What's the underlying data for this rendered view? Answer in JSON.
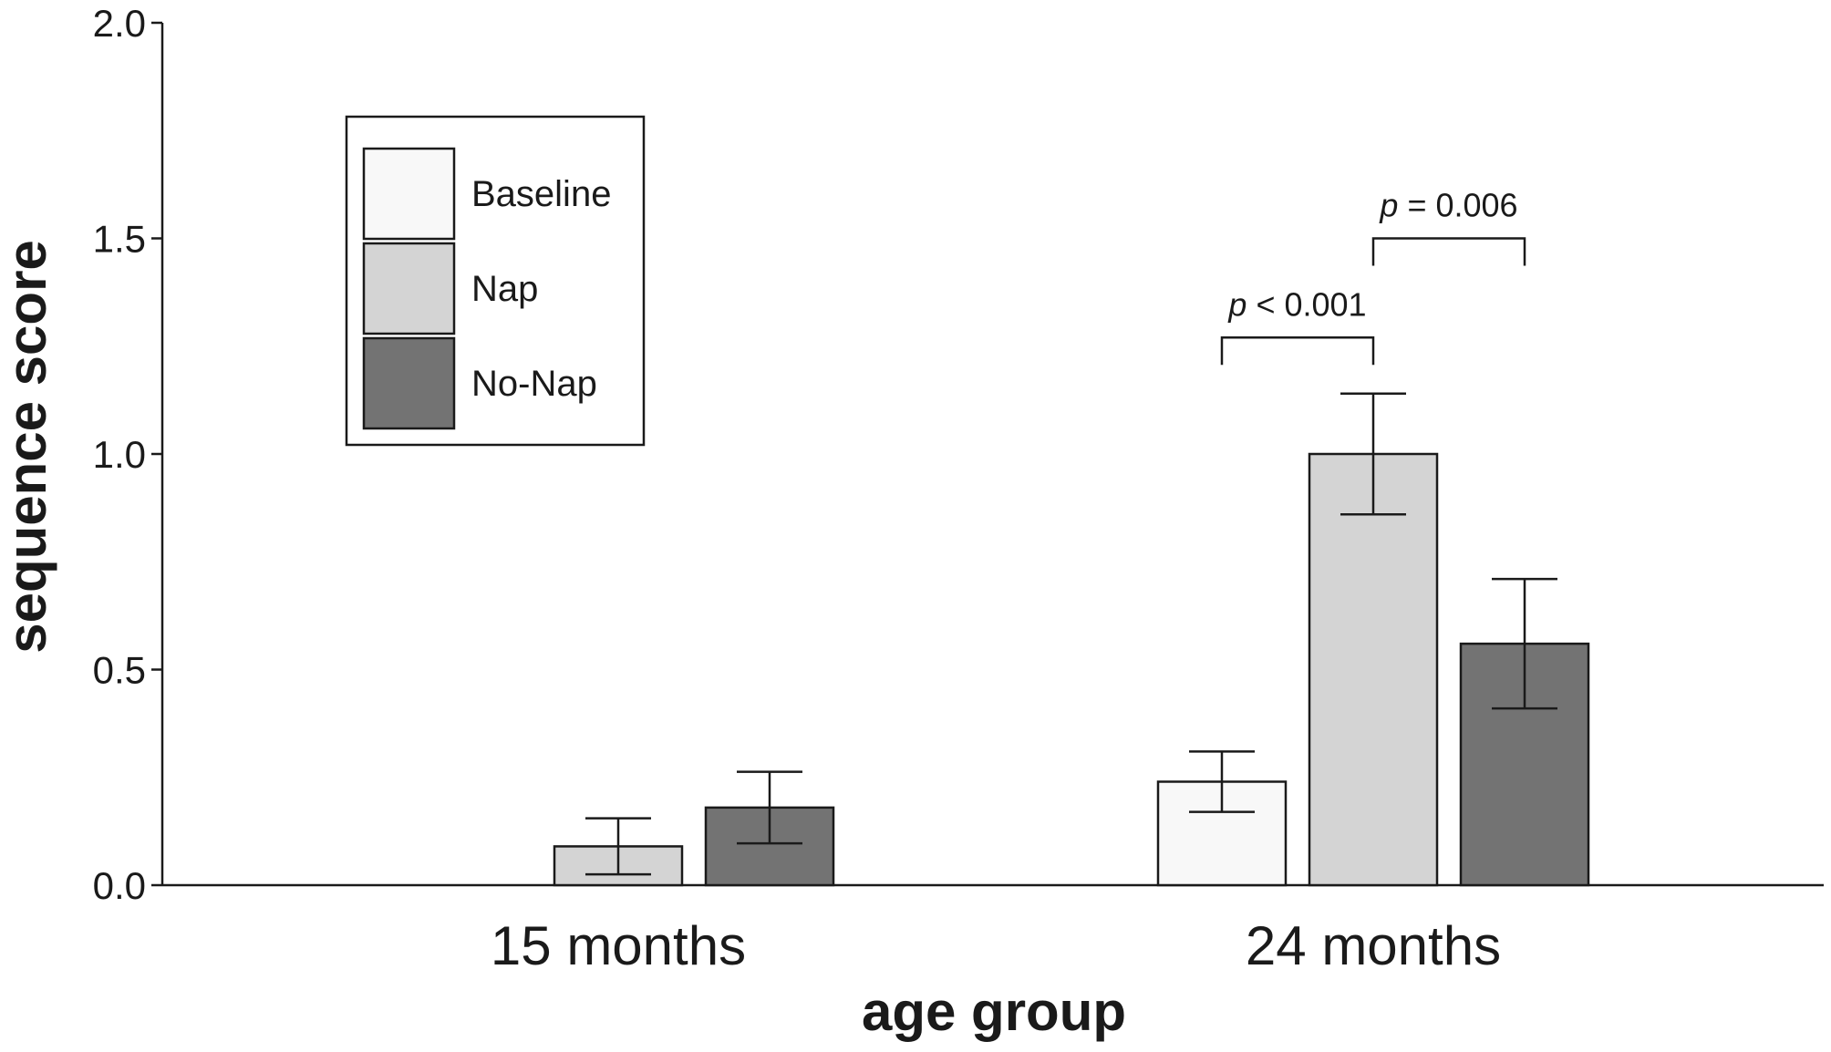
{
  "chart_data": {
    "type": "bar",
    "xlabel": "age group",
    "ylabel": "sequence score",
    "ylim": [
      0,
      2.0
    ],
    "yticks": [
      "0.0",
      "0.5",
      "1.0",
      "1.5",
      "2.0"
    ],
    "categories": [
      "15 months",
      "24 months"
    ],
    "grid": false,
    "legend_position": "top-left",
    "series": [
      {
        "name": "Baseline",
        "color": "#f8f8f8",
        "values": [
          null,
          0.24
        ],
        "error": [
          null,
          0.07
        ]
      },
      {
        "name": "Nap",
        "color": "#d4d4d4",
        "values": [
          0.09,
          1.0
        ],
        "error": [
          0.065,
          0.14
        ]
      },
      {
        "name": "No-Nap",
        "color": "#737373",
        "values": [
          0.18,
          0.56
        ],
        "error": [
          0.083,
          0.15
        ]
      }
    ],
    "annotations": [
      {
        "category": "24 months",
        "from_series": "Baseline",
        "to_series": "Nap",
        "level": 1.27,
        "p": "p",
        "text": " < 0.001"
      },
      {
        "category": "24 months",
        "from_series": "Nap",
        "to_series": "No-Nap",
        "level": 1.5,
        "p": "p",
        "text": " = 0.006"
      }
    ]
  }
}
